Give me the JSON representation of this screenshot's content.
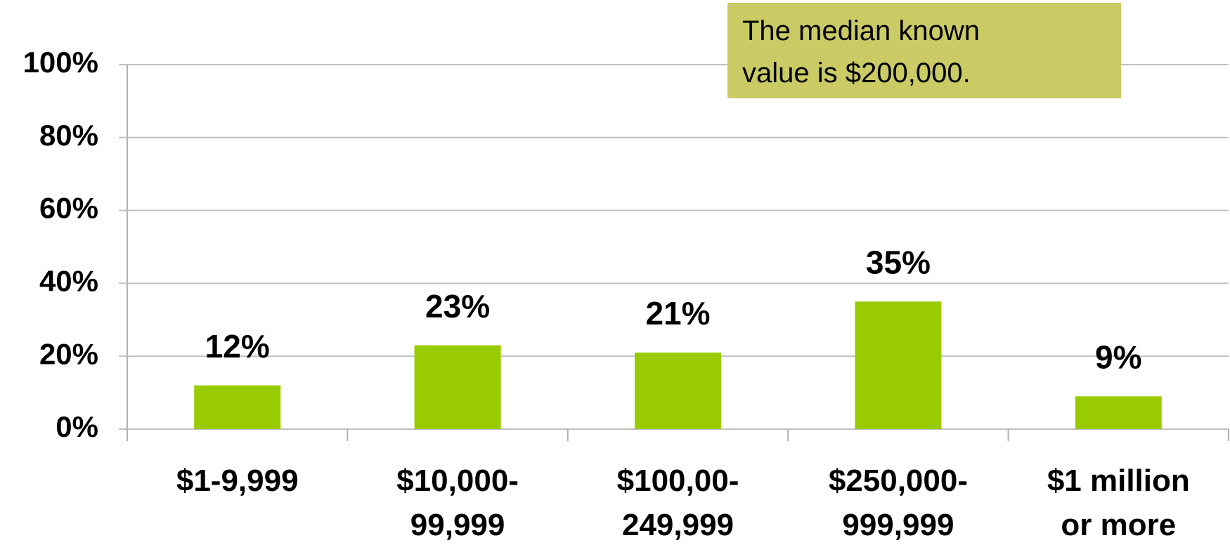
{
  "chart_data": {
    "type": "bar",
    "categories": [
      "$1-9,999",
      "$10,000-\n99,999",
      "$100,00-\n249,999",
      "$250,000-\n999,999",
      "$1 million\nor more"
    ],
    "values": [
      12,
      23,
      21,
      35,
      9
    ],
    "value_labels": [
      "12%",
      "23%",
      "21%",
      "35%",
      "9%"
    ],
    "color": "#99cc00",
    "ylim": [
      0,
      100
    ],
    "yticks": [
      {
        "value": 0,
        "label": "0%"
      },
      {
        "value": 20,
        "label": "20%"
      },
      {
        "value": 40,
        "label": "40%"
      },
      {
        "value": 60,
        "label": "60%"
      },
      {
        "value": 80,
        "label": "80%"
      },
      {
        "value": 100,
        "label": "100%"
      }
    ],
    "grid": true,
    "annotation": "The median known\nvalue is $200,000."
  }
}
